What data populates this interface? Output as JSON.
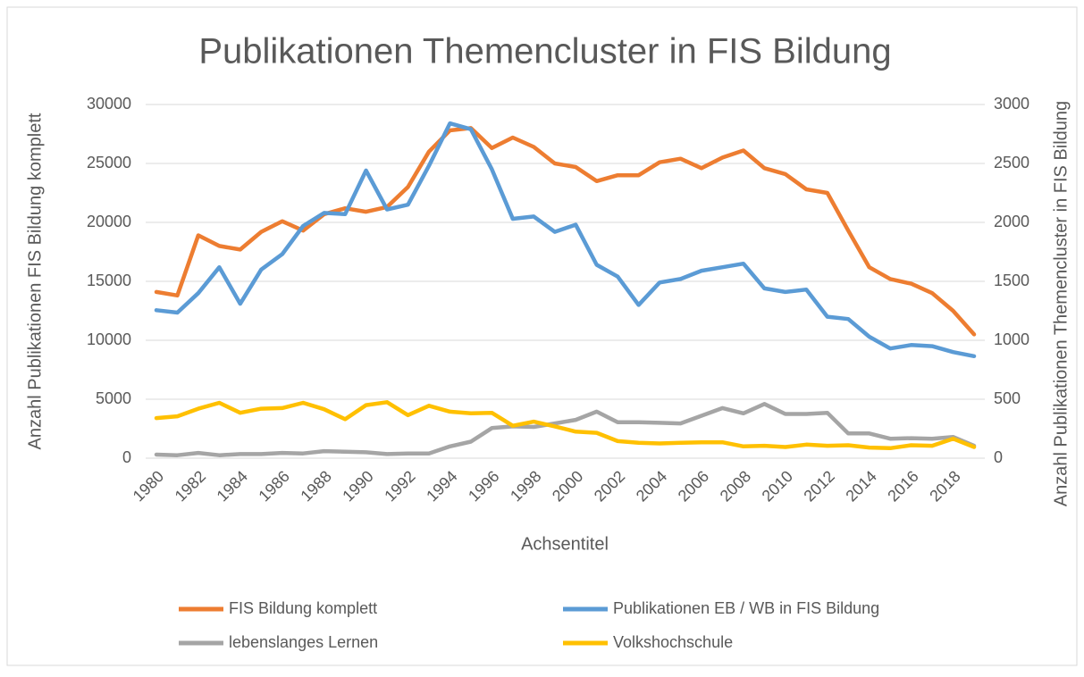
{
  "chart_data": {
    "type": "line",
    "title": "Publikationen Themencluster in FIS Bildung",
    "x_label": "Achsentitel",
    "y_label": "Anzahl Publikationen FIS Bildung komplett",
    "y2_label": "Anzahl Publikationen Themencluster in FIS Bildung",
    "categories": [
      "1980",
      null,
      "1982",
      null,
      "1984",
      null,
      "1986",
      null,
      "1988",
      null,
      "1990",
      null,
      "1992",
      null,
      "1994",
      null,
      "1996",
      null,
      "1998",
      null,
      "2000",
      null,
      "2002",
      null,
      "2004",
      null,
      "2006",
      null,
      "2008",
      null,
      "2010",
      null,
      "2012",
      null,
      "2014",
      null,
      "2016",
      null,
      "2018",
      null
    ],
    "ylim": [
      0,
      30000
    ],
    "yticks": [
      0,
      5000,
      10000,
      15000,
      20000,
      25000,
      30000
    ],
    "y2lim": [
      0,
      3000
    ],
    "y2ticks": [
      0,
      500,
      1000,
      1500,
      2000,
      2500,
      3000
    ],
    "grid": true,
    "legend": "bottom",
    "series": [
      {
        "name": "FIS Bildung komplett",
        "color": "#ed7d31",
        "values": [
          14100,
          13800,
          18900,
          18000,
          17700,
          19200,
          20100,
          19300,
          20700,
          21200,
          20900,
          21300,
          23000,
          26000,
          27800,
          28000,
          26300,
          27200,
          26400,
          25000,
          24700,
          23500,
          24000,
          24000,
          25100,
          25400,
          24600,
          25500,
          26100,
          24600,
          24100,
          22800,
          22500,
          19300,
          16200,
          15200,
          14800,
          14000,
          12500,
          10500
        ]
      },
      {
        "name": "Publikationen EB / WB in FIS Bildung",
        "color": "#5b9bd5",
        "axis": "y2",
        "values": [
          1255,
          1235,
          1400,
          1620,
          1310,
          1600,
          1730,
          1970,
          2080,
          2070,
          2440,
          2110,
          2150,
          2480,
          2840,
          2790,
          2450,
          2030,
          2050,
          1920,
          1980,
          1640,
          1540,
          1300,
          1490,
          1520,
          1590,
          1620,
          1650,
          1440,
          1410,
          1430,
          1200,
          1180,
          1030,
          930,
          960,
          950,
          900,
          865
        ]
      },
      {
        "name": "lebenslanges Lernen",
        "color": "#a5a5a5",
        "axis": "y2",
        "values": [
          30,
          25,
          45,
          25,
          35,
          35,
          45,
          40,
          60,
          55,
          50,
          35,
          40,
          40,
          100,
          140,
          255,
          270,
          265,
          295,
          325,
          395,
          305,
          305,
          300,
          295,
          360,
          425,
          380,
          460,
          375,
          375,
          385,
          210,
          210,
          165,
          170,
          165,
          180,
          105
        ]
      },
      {
        "name": "Volkshochschule",
        "color": "#ffc000",
        "axis": "y2",
        "values": [
          340,
          355,
          420,
          470,
          385,
          420,
          425,
          470,
          415,
          330,
          450,
          475,
          365,
          445,
          395,
          380,
          385,
          275,
          310,
          270,
          225,
          215,
          145,
          130,
          125,
          130,
          135,
          135,
          100,
          105,
          95,
          115,
          105,
          110,
          90,
          85,
          110,
          105,
          165,
          95
        ]
      }
    ]
  }
}
